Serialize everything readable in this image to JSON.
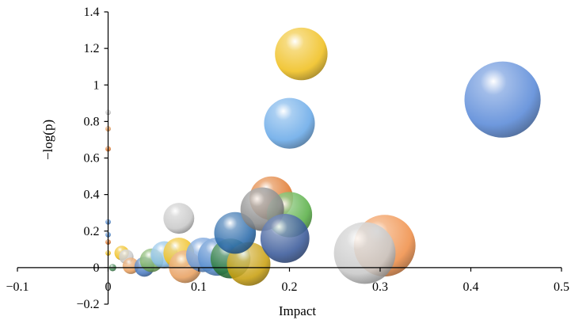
{
  "chart_data": {
    "type": "scatter",
    "title": "",
    "xlabel": "Impact",
    "ylabel": "−log(p)",
    "xlim": [
      -0.1,
      0.5
    ],
    "ylim": [
      -0.2,
      1.4
    ],
    "x_ticks": [
      -0.1,
      0,
      0.1,
      0.2,
      0.3,
      0.4,
      0.5
    ],
    "x_tick_labels": [
      "−0.1",
      "0",
      "0.1",
      "0.2",
      "0.3",
      "0.4",
      "0.5"
    ],
    "y_ticks": [
      -0.2,
      0,
      0.2,
      0.4,
      0.6,
      0.8,
      1,
      1.2,
      1.4
    ],
    "y_tick_labels": [
      "−0.2",
      "0",
      "0.2",
      "0.4",
      "0.6",
      "0.8",
      "1",
      "1.2",
      "1.4"
    ],
    "grid": false,
    "legend": "none",
    "points": [
      {
        "x": 0.0,
        "y": 0.85,
        "r": 0.003,
        "color": "#c9c9c9"
      },
      {
        "x": 0.0,
        "y": 0.76,
        "r": 0.003,
        "color": "#e8a060"
      },
      {
        "x": 0.0,
        "y": 0.65,
        "r": 0.003,
        "color": "#e07a30"
      },
      {
        "x": 0.0,
        "y": 0.25,
        "r": 0.003,
        "color": "#5a8fd0"
      },
      {
        "x": 0.0,
        "y": 0.18,
        "r": 0.003,
        "color": "#5a8fd0"
      },
      {
        "x": 0.0,
        "y": 0.14,
        "r": 0.003,
        "color": "#e07a30"
      },
      {
        "x": 0.0,
        "y": 0.08,
        "r": 0.003,
        "color": "#f0c020"
      },
      {
        "x": 0.005,
        "y": 0.0,
        "r": 0.004,
        "color": "#4a8a5a"
      },
      {
        "x": 0.015,
        "y": 0.08,
        "r": 0.008,
        "color": "#f0c020"
      },
      {
        "x": 0.02,
        "y": 0.06,
        "r": 0.008,
        "color": "#c9c9c9"
      },
      {
        "x": 0.025,
        "y": 0.01,
        "r": 0.009,
        "color": "#e8a060"
      },
      {
        "x": 0.04,
        "y": 0.005,
        "r": 0.011,
        "color": "#4a7ac0"
      },
      {
        "x": 0.048,
        "y": 0.04,
        "r": 0.013,
        "color": "#7ab060"
      },
      {
        "x": 0.062,
        "y": 0.07,
        "r": 0.015,
        "color": "#8ac0e8"
      },
      {
        "x": 0.078,
        "y": 0.08,
        "r": 0.017,
        "color": "#f0c020"
      },
      {
        "x": 0.085,
        "y": 0.005,
        "r": 0.018,
        "color": "#e8a060"
      },
      {
        "x": 0.078,
        "y": 0.27,
        "r": 0.017,
        "color": "#c9c9c9"
      },
      {
        "x": 0.105,
        "y": 0.07,
        "r": 0.019,
        "color": "#6a9ad8"
      },
      {
        "x": 0.12,
        "y": 0.06,
        "r": 0.021,
        "color": "#5a8fd0"
      },
      {
        "x": 0.135,
        "y": 0.05,
        "r": 0.022,
        "color": "#2a7a3a"
      },
      {
        "x": 0.155,
        "y": 0.02,
        "r": 0.024,
        "color": "#c9a010"
      },
      {
        "x": 0.14,
        "y": 0.19,
        "r": 0.023,
        "color": "#2a6aaa"
      },
      {
        "x": 0.18,
        "y": 0.38,
        "r": 0.024,
        "color": "#e07a30"
      },
      {
        "x": 0.2,
        "y": 0.29,
        "r": 0.025,
        "color": "#5ab048"
      },
      {
        "x": 0.17,
        "y": 0.32,
        "r": 0.024,
        "color": "#8a8a8a"
      },
      {
        "x": 0.195,
        "y": 0.16,
        "r": 0.027,
        "color": "#3a5a9a"
      },
      {
        "x": 0.2,
        "y": 0.79,
        "r": 0.028,
        "color": "#6aaae8"
      },
      {
        "x": 0.213,
        "y": 1.17,
        "r": 0.029,
        "color": "#f0c020"
      },
      {
        "x": 0.305,
        "y": 0.12,
        "r": 0.034,
        "color": "#f0904a"
      },
      {
        "x": 0.283,
        "y": 0.08,
        "r": 0.034,
        "color": "#c9c9c9"
      },
      {
        "x": 0.435,
        "y": 0.92,
        "r": 0.042,
        "color": "#5a8ad8"
      }
    ]
  }
}
